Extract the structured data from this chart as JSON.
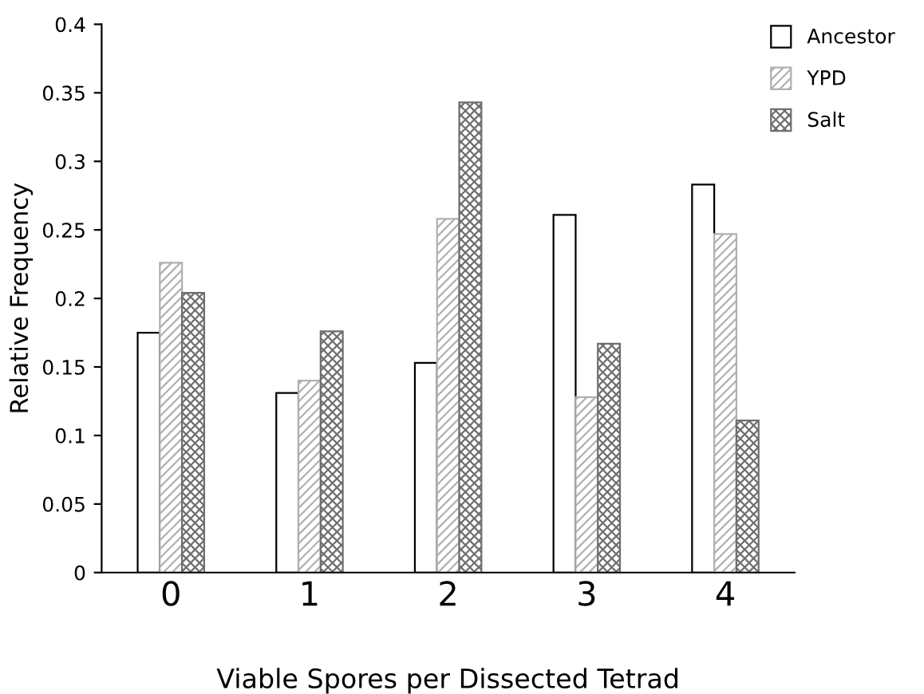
{
  "chart_data": {
    "type": "bar",
    "xlabel": "Viable Spores per Dissected Tetrad",
    "ylabel": "Relative Frequency",
    "categories": [
      "0",
      "1",
      "2",
      "3",
      "4"
    ],
    "series": [
      {
        "name": "Ancestor",
        "color": "#ffffff",
        "values": [
          0.175,
          0.131,
          0.153,
          0.261,
          0.283
        ]
      },
      {
        "name": "YPD",
        "color": "#b0b0b0",
        "values": [
          0.226,
          0.14,
          0.258,
          0.128,
          0.247
        ]
      },
      {
        "name": "Salt",
        "color": "#6e6e6e",
        "values": [
          0.204,
          0.176,
          0.343,
          0.167,
          0.111
        ]
      }
    ],
    "ylim": [
      0,
      0.4
    ],
    "yticks": [
      0,
      0.05,
      0.1,
      0.15,
      0.2,
      0.25,
      0.3,
      0.35,
      0.4
    ],
    "grid": false,
    "legend": "top right"
  }
}
